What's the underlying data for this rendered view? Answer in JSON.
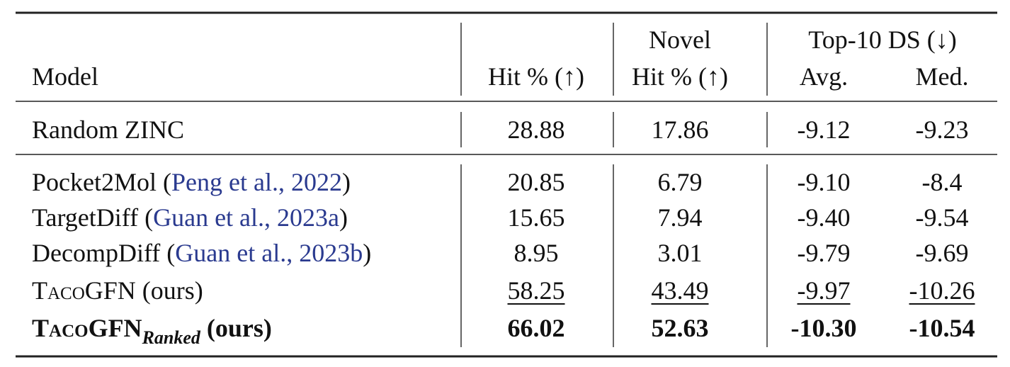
{
  "table": {
    "header": {
      "model": "Model",
      "hit": "Hit % (↑)",
      "novel": [
        "Novel",
        "Hit % (↑)"
      ],
      "top10": "Top-10 DS (↓)",
      "avg": "Avg.",
      "med": "Med."
    },
    "groups": [
      [
        {
          "model": [
            {
              "text": "Random ZINC"
            }
          ],
          "values": [
            "28.88",
            "17.86",
            "-9.12",
            "-9.23"
          ]
        }
      ],
      [
        {
          "model": [
            {
              "text": "Pocket2Mol ("
            },
            {
              "text": "Peng et al., 2022",
              "style": "cite"
            },
            {
              "text": ")"
            }
          ],
          "values": [
            "20.85",
            "6.79",
            "-9.10",
            "-8.4"
          ]
        },
        {
          "model": [
            {
              "text": "TargetDiff ("
            },
            {
              "text": "Guan et al., 2023a",
              "style": "cite"
            },
            {
              "text": ")"
            }
          ],
          "values": [
            "15.65",
            "7.94",
            "-9.40",
            "-9.54"
          ]
        },
        {
          "model": [
            {
              "text": "DecompDiff ("
            },
            {
              "text": "Guan et al., 2023b",
              "style": "cite"
            },
            {
              "text": ")"
            }
          ],
          "values": [
            "8.95",
            "3.01",
            "-9.79",
            "-9.69"
          ]
        },
        {
          "model": [
            {
              "text": "TacoGFN",
              "style": "smallcaps"
            },
            {
              "text": " (ours)"
            }
          ],
          "values": [
            "58.25",
            "43.49",
            "-9.97",
            "-10.26"
          ],
          "style": "underline"
        },
        {
          "model": [
            {
              "text": "TacoGFN",
              "style": "smallcaps"
            },
            {
              "text": "Ranked",
              "style": "sub"
            },
            {
              "text": " (ours)"
            }
          ],
          "values": [
            "66.02",
            "52.63",
            "-10.30",
            "-10.54"
          ],
          "style": "bold"
        }
      ]
    ]
  }
}
